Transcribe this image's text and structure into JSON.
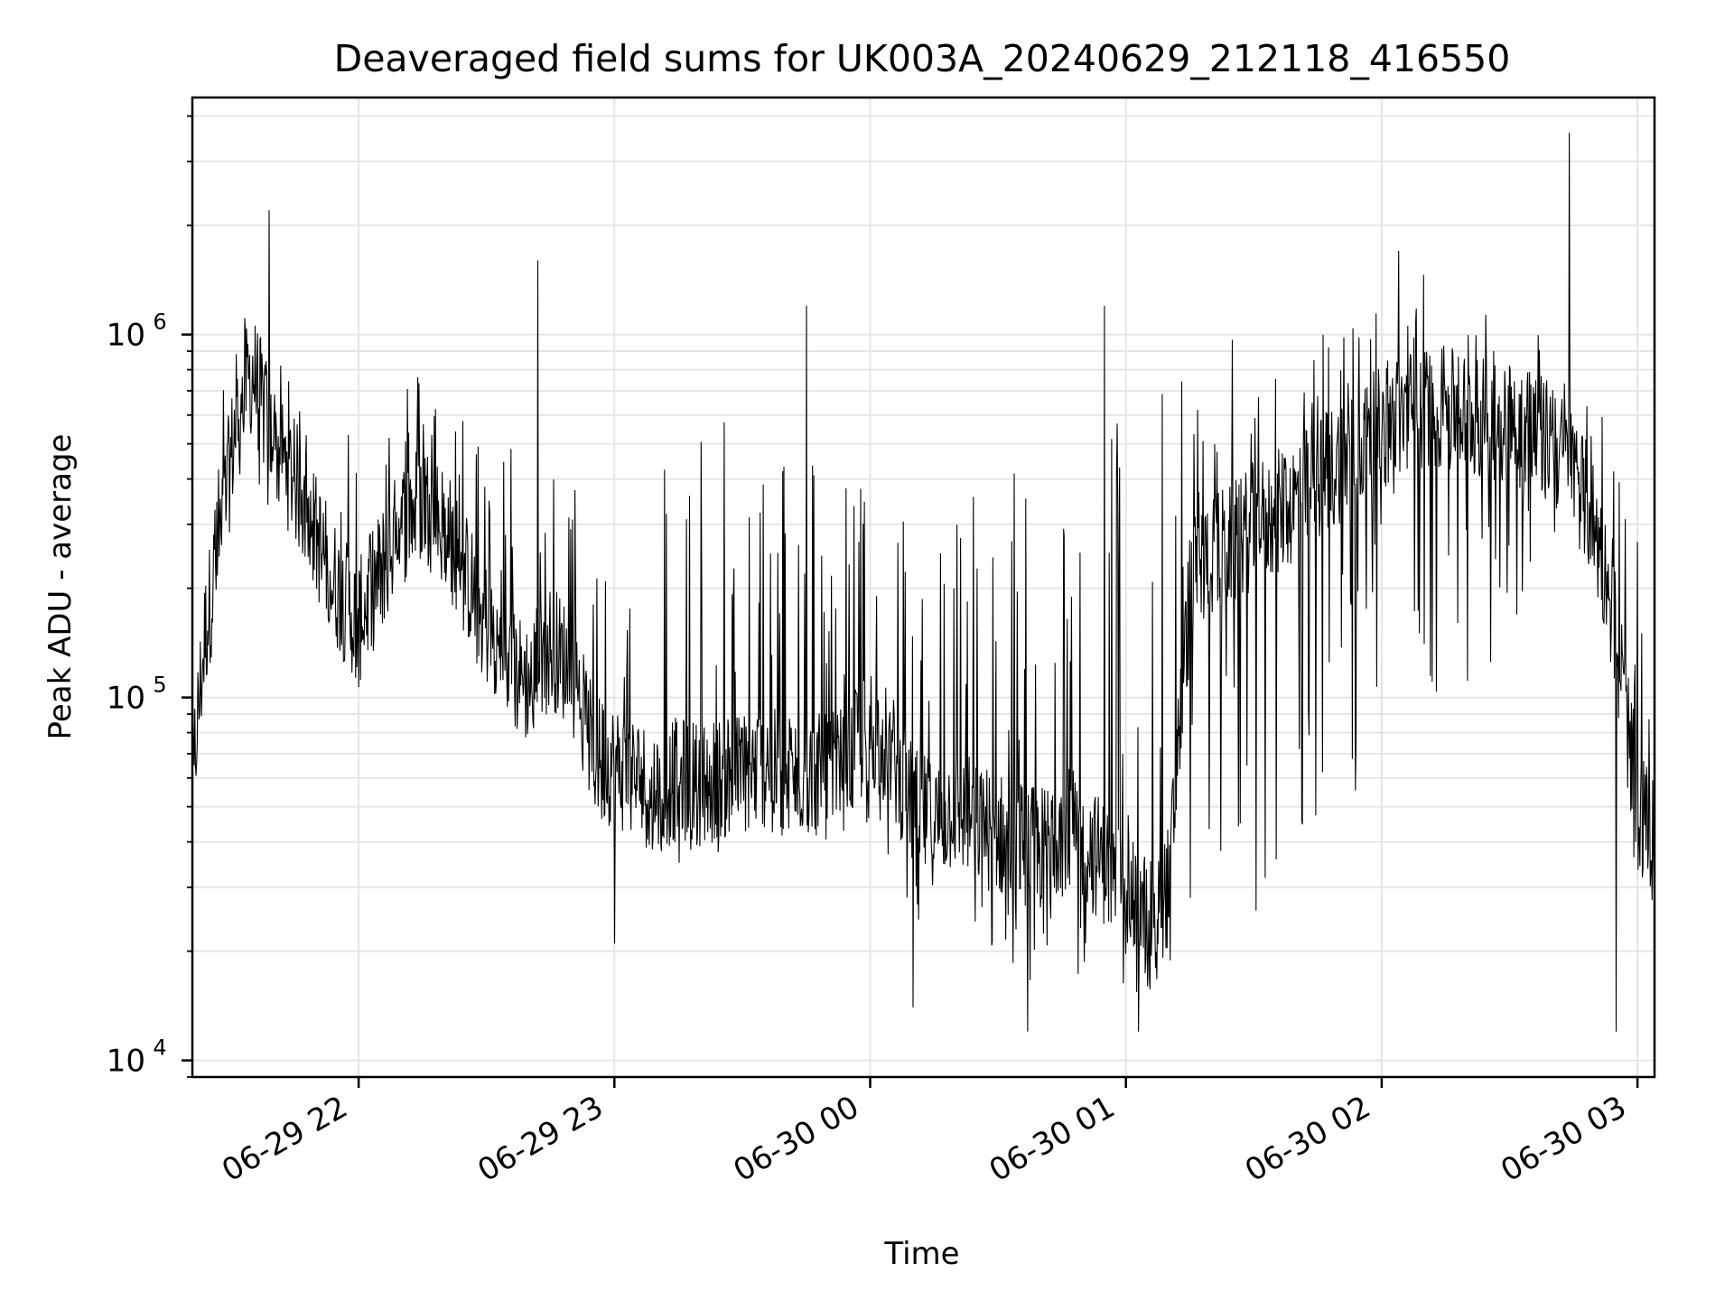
{
  "chart_data": {
    "type": "line",
    "title": "Deaveraged field sums for UK003A_20240629_212118_416550",
    "xlabel": "Time",
    "ylabel": "Peak ADU - average",
    "yscale": "log",
    "ylim": [
      9000,
      4500000
    ],
    "xlim": [
      "2024-06-29 21:21",
      "2024-06-30 03:04"
    ],
    "grid": true,
    "line_color": "#000000",
    "grid_color": "#e5e5e5",
    "x_ticks": [
      {
        "value": "2024-06-29 22:00",
        "label": "06-29 22"
      },
      {
        "value": "2024-06-29 23:00",
        "label": "06-29 23"
      },
      {
        "value": "2024-06-30 00:00",
        "label": "06-30 00"
      },
      {
        "value": "2024-06-30 01:00",
        "label": "06-30 01"
      },
      {
        "value": "2024-06-30 02:00",
        "label": "06-30 02"
      },
      {
        "value": "2024-06-30 03:00",
        "label": "06-30 03"
      }
    ],
    "y_ticks": [
      {
        "value": 10000,
        "base": "10",
        "exp": "4"
      },
      {
        "value": 100000,
        "base": "10",
        "exp": "5"
      },
      {
        "value": 1000000,
        "base": "10",
        "exp": "6"
      }
    ],
    "series": [
      {
        "name": "",
        "x": [
          "2024-06-29 21:21",
          "2024-06-29 21:24",
          "2024-06-29 21:28",
          "2024-06-29 21:31",
          "2024-06-29 21:35",
          "2024-06-29 21:40",
          "2024-06-29 21:45",
          "2024-06-29 21:50",
          "2024-06-29 21:55",
          "2024-06-29 22:00",
          "2024-06-29 22:05",
          "2024-06-29 22:10",
          "2024-06-29 22:15",
          "2024-06-29 22:20",
          "2024-06-29 22:25",
          "2024-06-29 22:30",
          "2024-06-29 22:35",
          "2024-06-29 22:40",
          "2024-06-29 22:45",
          "2024-06-29 22:50",
          "2024-06-29 22:55",
          "2024-06-29 23:00",
          "2024-06-29 23:05",
          "2024-06-29 23:10",
          "2024-06-29 23:15",
          "2024-06-29 23:20",
          "2024-06-29 23:25",
          "2024-06-29 23:30",
          "2024-06-29 23:35",
          "2024-06-29 23:40",
          "2024-06-29 23:45",
          "2024-06-29 23:50",
          "2024-06-29 23:55",
          "2024-06-30 00:00",
          "2024-06-30 00:05",
          "2024-06-30 00:10",
          "2024-06-30 00:15",
          "2024-06-30 00:20",
          "2024-06-30 00:25",
          "2024-06-30 00:30",
          "2024-06-30 00:35",
          "2024-06-30 00:40",
          "2024-06-30 00:45",
          "2024-06-30 00:50",
          "2024-06-30 00:55",
          "2024-06-30 01:00",
          "2024-06-30 01:05",
          "2024-06-30 01:10",
          "2024-06-30 01:15",
          "2024-06-30 01:20",
          "2024-06-30 01:25",
          "2024-06-30 01:30",
          "2024-06-30 01:35",
          "2024-06-30 01:40",
          "2024-06-30 01:45",
          "2024-06-30 01:50",
          "2024-06-30 01:55",
          "2024-06-30 02:00",
          "2024-06-30 02:05",
          "2024-06-30 02:10",
          "2024-06-30 02:15",
          "2024-06-30 02:20",
          "2024-06-30 02:25",
          "2024-06-30 02:30",
          "2024-06-30 02:35",
          "2024-06-30 02:40",
          "2024-06-30 02:45",
          "2024-06-30 02:50",
          "2024-06-30 02:55",
          "2024-06-30 03:00",
          "2024-06-30 03:04"
        ],
        "values": [
          60000,
          150000,
          300000,
          550000,
          800000,
          500000,
          400000,
          280000,
          200000,
          160000,
          220000,
          300000,
          350000,
          300000,
          220000,
          160000,
          120000,
          110000,
          140000,
          120000,
          70000,
          65000,
          60000,
          55000,
          60000,
          58000,
          60000,
          62000,
          65000,
          60000,
          62000,
          60000,
          65000,
          85000,
          70000,
          50000,
          45000,
          50000,
          45000,
          42000,
          40000,
          38000,
          45000,
          40000,
          35000,
          28000,
          25000,
          30000,
          200000,
          250000,
          260000,
          300000,
          320000,
          350000,
          400000,
          450000,
          500000,
          550000,
          600000,
          650000,
          620000,
          600000,
          580000,
          560000,
          540000,
          500000,
          420000,
          300000,
          150000,
          50000,
          40000
        ],
        "envelope_high": [
          60000,
          250000,
          700000,
          1300000,
          1100000,
          900000,
          700000,
          600000,
          800000,
          650000,
          700000,
          900000,
          800000,
          700000,
          650000,
          600000,
          550000,
          500000,
          450000,
          400000,
          400000,
          450000,
          500000,
          550000,
          600000,
          700000,
          600000,
          550000,
          500000,
          600000,
          650000,
          450000,
          400000,
          550000,
          400000,
          350000,
          300000,
          400000,
          450000,
          500000,
          500000,
          500000,
          550000,
          600000,
          650000,
          700000,
          750000,
          900000,
          1000000,
          1100000,
          1000000,
          950000,
          900000,
          950000,
          1000000,
          1100000,
          1200000,
          1300000,
          1400000,
          1500000,
          1400000,
          1300000,
          1200000,
          1100000,
          1000000,
          1200000,
          2000000,
          800000,
          500000,
          300000,
          50000
        ],
        "envelope_low": [
          60000,
          100000,
          250000,
          450000,
          400000,
          300000,
          250000,
          200000,
          130000,
          100000,
          130000,
          180000,
          220000,
          180000,
          140000,
          110000,
          90000,
          80000,
          90000,
          80000,
          45000,
          40000,
          35000,
          35000,
          35000,
          33000,
          35000,
          35000,
          38000,
          40000,
          40000,
          38000,
          40000,
          45000,
          35000,
          25000,
          22000,
          22000,
          20000,
          18000,
          17000,
          16000,
          18000,
          17000,
          16000,
          15000,
          15000,
          18000,
          25000,
          22000,
          22000,
          25000,
          28000,
          30000,
          40000,
          45000,
          50000,
          80000,
          90000,
          100000,
          95000,
          90000,
          100000,
          130000,
          200000,
          250000,
          300000,
          280000,
          90000,
          30000,
          30000
        ],
        "peaks": [
          {
            "x": "2024-06-29 21:39",
            "value": 2200000
          },
          {
            "x": "2024-06-29 22:42",
            "value": 1600000
          },
          {
            "x": "2024-06-29 23:45",
            "value": 1200000
          },
          {
            "x": "2024-06-30 00:55",
            "value": 1200000
          },
          {
            "x": "2024-06-30 02:04",
            "value": 1700000
          },
          {
            "x": "2024-06-30 02:44",
            "value": 3600000
          }
        ],
        "troughs": [
          {
            "x": "2024-06-29 23:00",
            "value": 21000
          },
          {
            "x": "2024-06-30 00:10",
            "value": 14000
          },
          {
            "x": "2024-06-30 00:37",
            "value": 12000
          },
          {
            "x": "2024-06-30 01:03",
            "value": 12000
          },
          {
            "x": "2024-06-30 02:55",
            "value": 12000
          }
        ]
      }
    ]
  }
}
